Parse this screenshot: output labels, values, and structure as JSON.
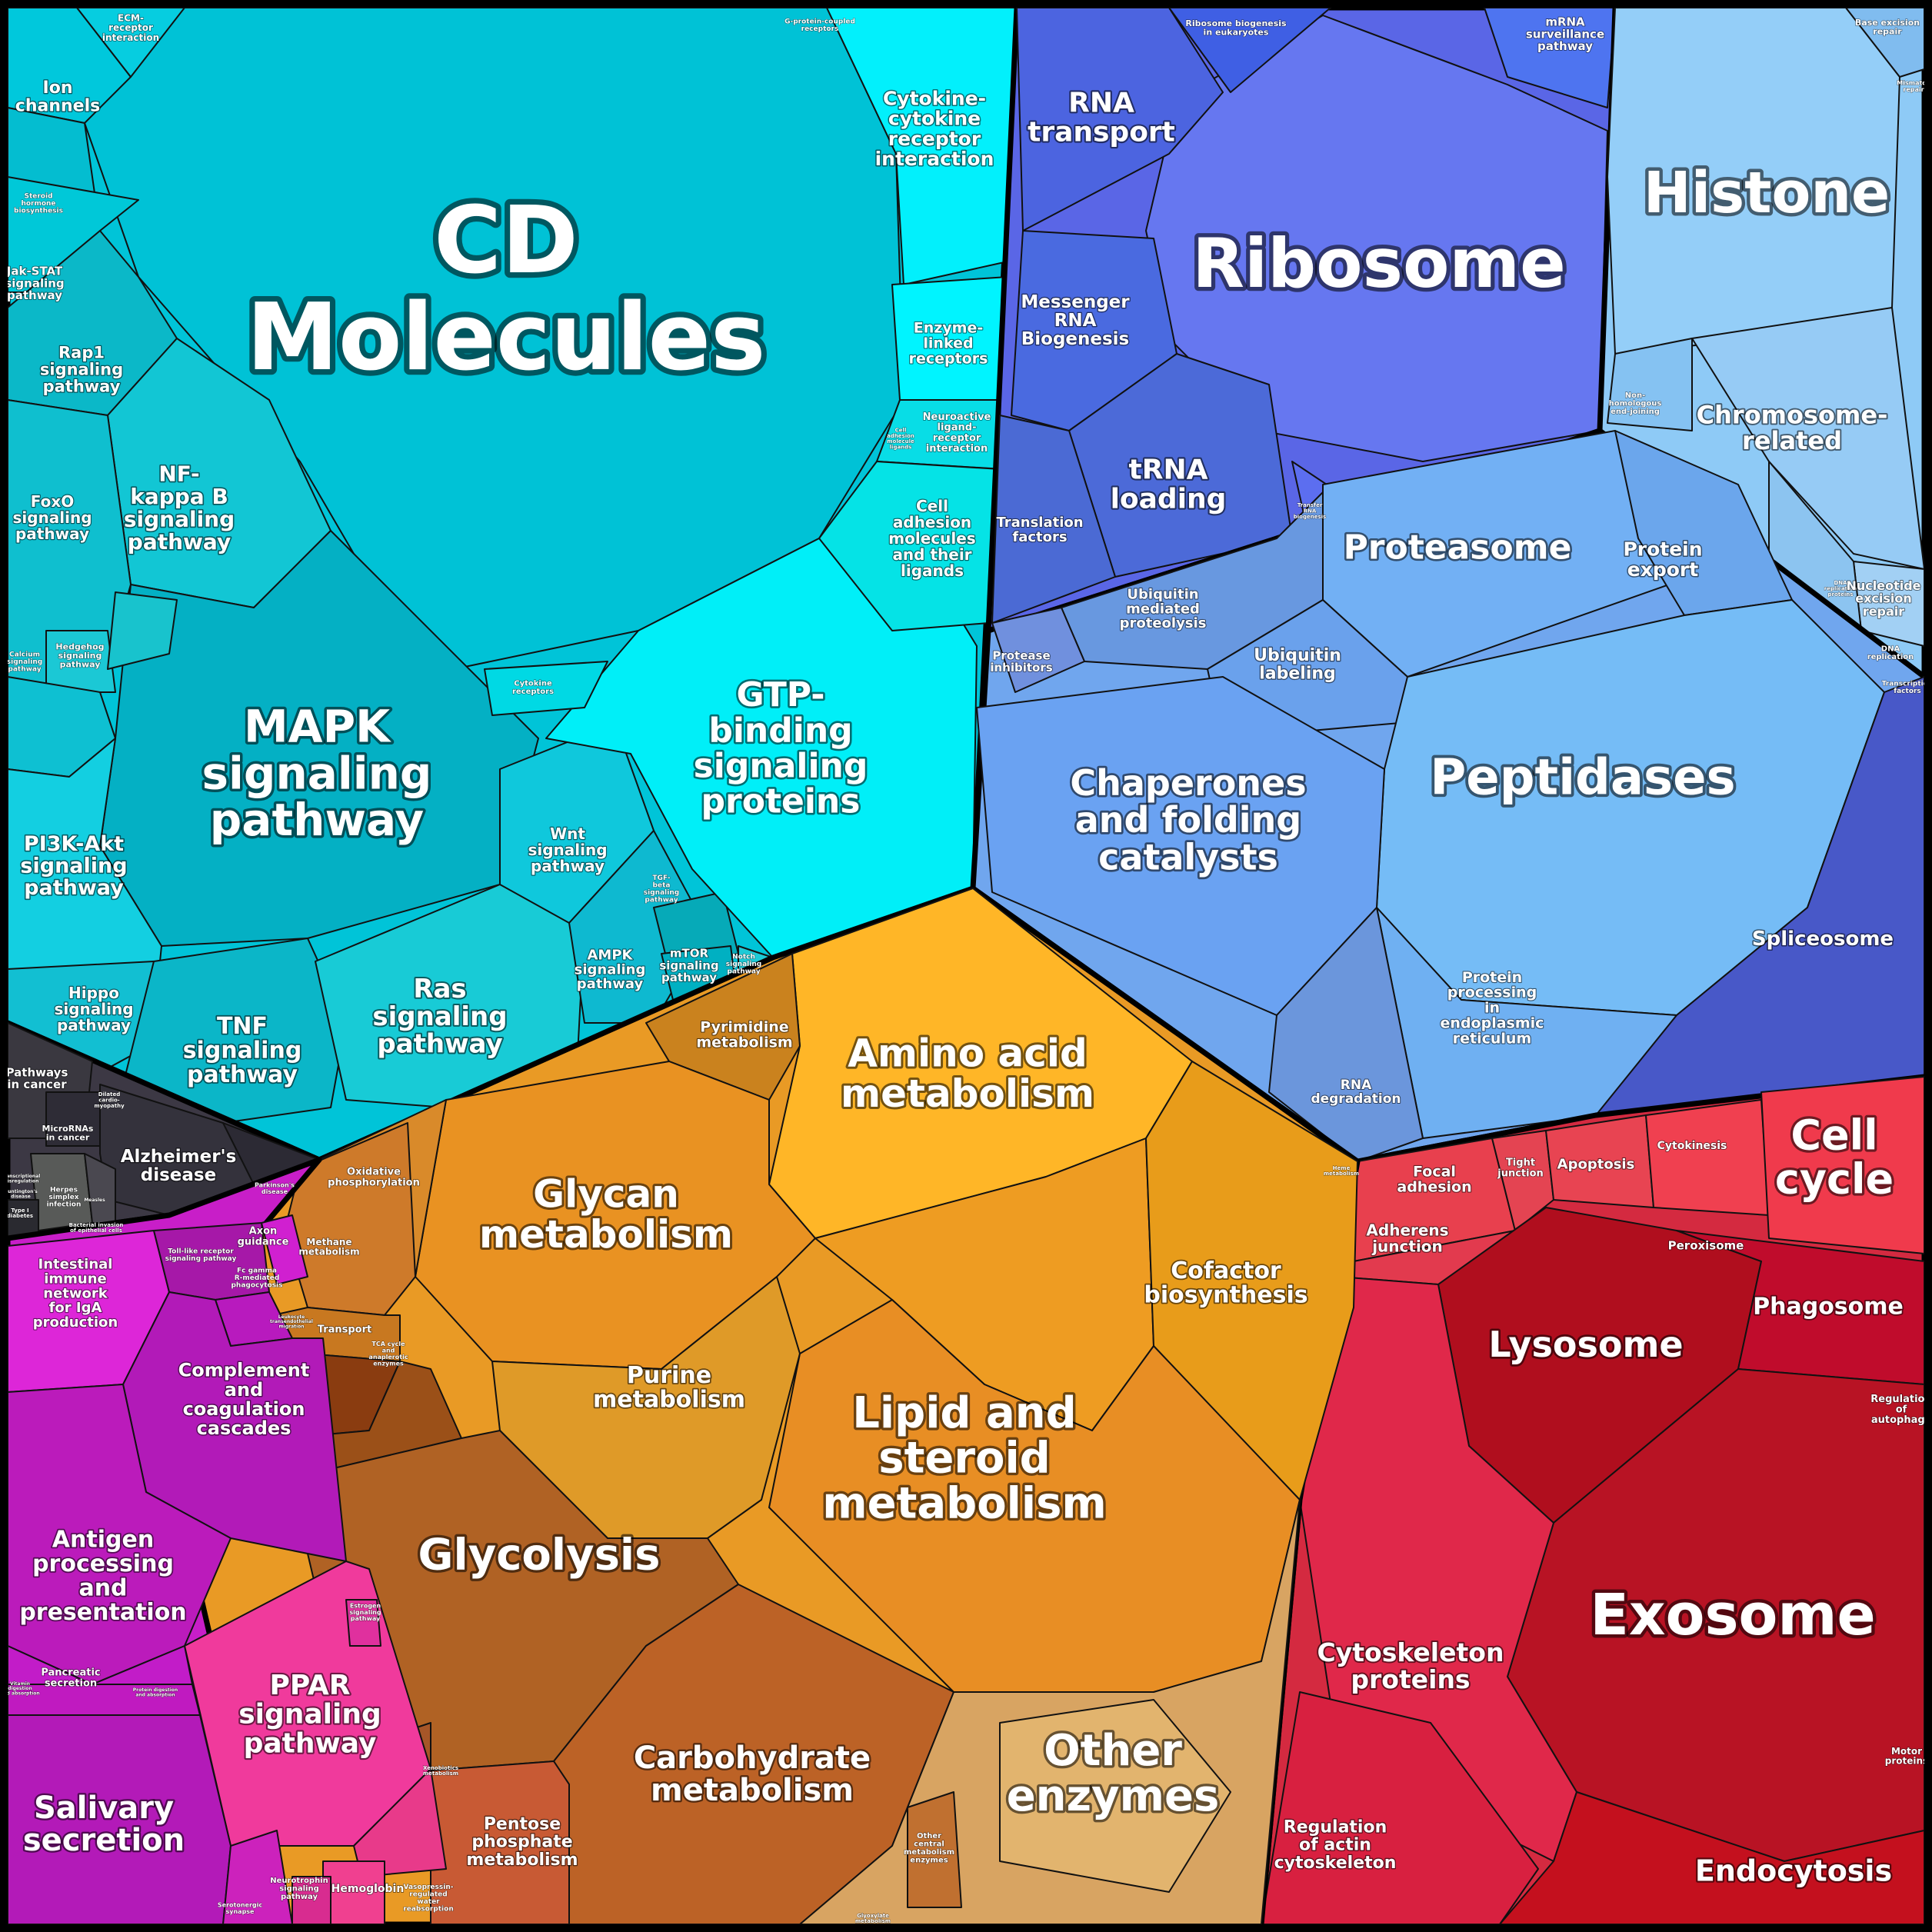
{
  "groups": [
    {
      "id": "signaling",
      "color": "#00c4d9",
      "labels": [
        {
          "id": "cd-molecules",
          "text": [
            "CD",
            "Molecules"
          ],
          "size": 120
        },
        {
          "id": "ion-channels",
          "text": [
            "Ion",
            "channels"
          ],
          "size": 22
        },
        {
          "id": "ecm-receptor",
          "text": [
            "ECM-",
            "receptor",
            "interaction"
          ],
          "size": 12
        },
        {
          "id": "steroid-hormone",
          "text": [
            "Steroid",
            "hormone",
            "biosynthesis"
          ],
          "size": 9
        },
        {
          "id": "jak-stat",
          "text": [
            "Jak-STAT",
            "signaling",
            "pathway"
          ],
          "size": 15
        },
        {
          "id": "rap1",
          "text": [
            "Rap1",
            "signaling",
            "pathway"
          ],
          "size": 21
        },
        {
          "id": "nf-kappa-b",
          "text": [
            "NF-",
            "kappa B",
            "signaling",
            "pathway"
          ],
          "size": 28
        },
        {
          "id": "foxo",
          "text": [
            "FoxO",
            "signaling",
            "pathway"
          ],
          "size": 20
        },
        {
          "id": "hedgehog",
          "text": [
            "Hedgehog",
            "signaling",
            "pathway"
          ],
          "size": 11
        },
        {
          "id": "calcium",
          "text": [
            "Calcium",
            "signaling",
            "pathway"
          ],
          "size": 9
        },
        {
          "id": "mapk",
          "text": [
            "MAPK",
            "signaling",
            "pathway"
          ],
          "size": 58
        },
        {
          "id": "pi3k-akt",
          "text": [
            "PI3K-Akt",
            "signaling",
            "pathway"
          ],
          "size": 27
        },
        {
          "id": "hippo",
          "text": [
            "Hippo",
            "signaling",
            "pathway"
          ],
          "size": 20
        },
        {
          "id": "tnf",
          "text": [
            "TNF",
            "signaling",
            "pathway"
          ],
          "size": 30
        },
        {
          "id": "ras",
          "text": [
            "Ras",
            "signaling",
            "pathway"
          ],
          "size": 34
        },
        {
          "id": "wnt",
          "text": [
            "Wnt",
            "signaling",
            "pathway"
          ],
          "size": 20
        },
        {
          "id": "tgf-beta",
          "text": [
            "TGF-",
            "beta",
            "signaling",
            "pathway"
          ],
          "size": 9
        },
        {
          "id": "ampk",
          "text": [
            "AMPK",
            "signaling",
            "pathway"
          ],
          "size": 18
        },
        {
          "id": "mtor",
          "text": [
            "mTOR",
            "signaling",
            "pathway"
          ],
          "size": 15
        },
        {
          "id": "notch",
          "text": [
            "Notch",
            "signaling",
            "pathway"
          ],
          "size": 9
        },
        {
          "id": "gtp-binding",
          "text": [
            "GTP-",
            "binding",
            "signaling",
            "proteins"
          ],
          "size": 44
        },
        {
          "id": "cytokine-receptors",
          "text": [
            "Cytokine",
            "receptors"
          ],
          "size": 10
        },
        {
          "id": "cell-adhesion",
          "text": [
            "Cell",
            "adhesion",
            "molecules",
            "and their",
            "ligands"
          ],
          "size": 20
        },
        {
          "id": "cell-adhesion-small",
          "text": [
            "Cell",
            "adhesion",
            "molecule",
            "ligands"
          ],
          "size": 7
        },
        {
          "id": "neuroactive",
          "text": [
            "Neuroactive",
            "ligand-",
            "receptor",
            "interaction"
          ],
          "size": 13
        },
        {
          "id": "enzyme-linked",
          "text": [
            "Enzyme-",
            "linked",
            "receptors"
          ],
          "size": 19
        },
        {
          "id": "cytokine-cytokine",
          "text": [
            "Cytokine-",
            "cytokine",
            "receptor",
            "interaction"
          ],
          "size": 25
        },
        {
          "id": "g-protein",
          "text": [
            "G-protein-coupled",
            "receptors"
          ],
          "size": 9
        }
      ]
    },
    {
      "id": "genetic-information",
      "color": "#5060e6",
      "labels": [
        {
          "id": "ribosome",
          "text": [
            "Ribosome"
          ],
          "size": 88
        },
        {
          "id": "rna-transport",
          "text": [
            "RNA",
            "transport"
          ],
          "size": 36
        },
        {
          "id": "ribosome-biogenesis",
          "text": [
            "Ribosome biogenesis",
            "in eukaryotes"
          ],
          "size": 11
        },
        {
          "id": "mrna-surveillance",
          "text": [
            "mRNA",
            "surveillance",
            "pathway"
          ],
          "size": 15
        },
        {
          "id": "messenger-rna",
          "text": [
            "Messenger",
            "RNA",
            "Biogenesis"
          ],
          "size": 23
        },
        {
          "id": "trna-loading",
          "text": [
            "tRNA",
            "loading"
          ],
          "size": 36
        },
        {
          "id": "translation-factors",
          "text": [
            "Translation",
            "factors"
          ],
          "size": 18
        },
        {
          "id": "transfer-rna",
          "text": [
            "Transfer",
            "RNA",
            "biogenesis"
          ],
          "size": 7
        }
      ]
    },
    {
      "id": "chromosome",
      "color": "#8ec8f4",
      "labels": [
        {
          "id": "histone",
          "text": [
            "Histone"
          ],
          "size": 74
        },
        {
          "id": "base-excision",
          "text": [
            "Base excision",
            "repair"
          ],
          "size": 11
        },
        {
          "id": "mismatch",
          "text": [
            "Mismatch",
            "repair"
          ],
          "size": 8
        },
        {
          "id": "non-homologous",
          "text": [
            "Non-",
            "homologous",
            "end-joining"
          ],
          "size": 10
        },
        {
          "id": "chromosome-related",
          "text": [
            "Chromosome-",
            "related"
          ],
          "size": 32
        },
        {
          "id": "dna-replication-proteins",
          "text": [
            "DNA",
            "replication",
            "proteins"
          ],
          "size": 7
        },
        {
          "id": "nucleotide-excision",
          "text": [
            "Nucleotide",
            "excision",
            "repair"
          ],
          "size": 16
        },
        {
          "id": "dna-replication",
          "text": [
            "DNA",
            "replication"
          ],
          "size": 10
        },
        {
          "id": "transcription-factors",
          "text": [
            "Transcription",
            "factors"
          ],
          "size": 9
        }
      ]
    },
    {
      "id": "protein-processing",
      "color": "#6ca2ee",
      "labels": [
        {
          "id": "proteasome",
          "text": [
            "Proteasome"
          ],
          "size": 44
        },
        {
          "id": "protein-export",
          "text": [
            "Protein",
            "export"
          ],
          "size": 25
        },
        {
          "id": "peptidases",
          "text": [
            "Peptidases"
          ],
          "size": 64
        },
        {
          "id": "ubiquitin-mediated",
          "text": [
            "Ubiquitin",
            "mediated",
            "proteolysis"
          ],
          "size": 18
        },
        {
          "id": "ubiquitin-labeling",
          "text": [
            "Ubiquitin",
            "labeling"
          ],
          "size": 22
        },
        {
          "id": "protease-inhibitors",
          "text": [
            "Protease",
            "inhibitors"
          ],
          "size": 15
        },
        {
          "id": "chaperones",
          "text": [
            "Chaperones",
            "and folding",
            "catalysts"
          ],
          "size": 46
        },
        {
          "id": "protein-processing-er",
          "text": [
            "Protein",
            "processing",
            "in",
            "endoplasmic",
            "reticulum"
          ],
          "size": 19
        },
        {
          "id": "rna-degradation",
          "text": [
            "RNA",
            "degradation"
          ],
          "size": 17
        },
        {
          "id": "spliceosome",
          "text": [
            "Spliceosome"
          ],
          "size": 26
        }
      ]
    },
    {
      "id": "cellular-processes",
      "color": "#e02a46",
      "labels": [
        {
          "id": "cell-cycle",
          "text": [
            "Cell",
            "cycle"
          ],
          "size": 54
        },
        {
          "id": "focal-adhesion",
          "text": [
            "Focal",
            "adhesion"
          ],
          "size": 19
        },
        {
          "id": "tight-junction",
          "text": [
            "Tight",
            "junction"
          ],
          "size": 13
        },
        {
          "id": "apoptosis",
          "text": [
            "Apoptosis"
          ],
          "size": 18
        },
        {
          "id": "cytokinesis",
          "text": [
            "Cytokinesis"
          ],
          "size": 14
        },
        {
          "id": "adherens-junction",
          "text": [
            "Adherens",
            "junction"
          ],
          "size": 20
        },
        {
          "id": "peroxisome",
          "text": [
            "Peroxisome"
          ],
          "size": 15
        },
        {
          "id": "lysosome",
          "text": [
            "Lysosome"
          ],
          "size": 46
        },
        {
          "id": "phagosome",
          "text": [
            "Phagosome"
          ],
          "size": 30
        },
        {
          "id": "regulation-autophagy",
          "text": [
            "Regulation",
            "of",
            "autophagy"
          ],
          "size": 13
        },
        {
          "id": "exosome",
          "text": [
            "Exosome"
          ],
          "size": 74
        },
        {
          "id": "cytoskeleton",
          "text": [
            "Cytoskeleton",
            "proteins"
          ],
          "size": 33
        },
        {
          "id": "motor-proteins",
          "text": [
            "Motor",
            "proteins"
          ],
          "size": 12
        },
        {
          "id": "regulation-actin",
          "text": [
            "Regulation",
            "of actin",
            "cytoskeleton"
          ],
          "size": 22
        },
        {
          "id": "endocytosis",
          "text": [
            "Endocytosis"
          ],
          "size": 38
        }
      ]
    },
    {
      "id": "metabolism",
      "color": "#f0a020",
      "labels": [
        {
          "id": "amino-acid",
          "text": [
            "Amino acid",
            "metabolism"
          ],
          "size": 50
        },
        {
          "id": "pyrimidine",
          "text": [
            "Pyrimidine",
            "metabolism"
          ],
          "size": 19
        },
        {
          "id": "glycan",
          "text": [
            "Glycan",
            "metabolism"
          ],
          "size": 50
        },
        {
          "id": "oxidative-phosphorylation",
          "text": [
            "Oxidative",
            "phosphorylation"
          ],
          "size": 13
        },
        {
          "id": "cofactor",
          "text": [
            "Cofactor",
            "biosynthesis"
          ],
          "size": 30
        },
        {
          "id": "purine",
          "text": [
            "Purine",
            "metabolism"
          ],
          "size": 30
        },
        {
          "id": "lipid-steroid",
          "text": [
            "Lipid and",
            "steroid",
            "metabolism"
          ],
          "size": 56
        },
        {
          "id": "methane",
          "text": [
            "Methane",
            "metabolism"
          ],
          "size": 12
        },
        {
          "id": "transport",
          "text": [
            "Transport"
          ],
          "size": 13
        },
        {
          "id": "tca-cycle",
          "text": [
            "TCA cycle",
            "and",
            "anaplerotic",
            "enzymes"
          ],
          "size": 8
        },
        {
          "id": "glycolysis",
          "text": [
            "Glycolysis"
          ],
          "size": 56
        },
        {
          "id": "carbohydrate",
          "text": [
            "Carbohydrate",
            "metabolism"
          ],
          "size": 40
        },
        {
          "id": "pentose-phosphate",
          "text": [
            "Pentose",
            "phosphate",
            "metabolism"
          ],
          "size": 22
        },
        {
          "id": "other-central",
          "text": [
            "Other",
            "central",
            "metabolism",
            "enzymes"
          ],
          "size": 10
        },
        {
          "id": "other-enzymes",
          "text": [
            "Other",
            "enzymes"
          ],
          "size": 56
        },
        {
          "id": "heme",
          "text": [
            "Heme",
            "metabolism"
          ],
          "size": 7
        },
        {
          "id": "xenobiotics",
          "text": [
            "Xenobiotics",
            "metabolism"
          ],
          "size": 7
        },
        {
          "id": "glyoxylate",
          "text": [
            "Glyoxylate",
            "metabolism"
          ],
          "size": 7
        }
      ]
    },
    {
      "id": "human-diseases",
      "color": "#3a3742",
      "labels": [
        {
          "id": "pathways-in-cancer",
          "text": [
            "Pathways",
            "in cancer"
          ],
          "size": 15
        },
        {
          "id": "microrna",
          "text": [
            "MicroRNAs",
            "in cancer"
          ],
          "size": 11
        },
        {
          "id": "cardiomyopathy",
          "text": [
            "Dilated",
            "cardio-",
            "myopathy"
          ],
          "size": 7
        },
        {
          "id": "alzheimers",
          "text": [
            "Alzheimer's",
            "disease"
          ],
          "size": 23
        },
        {
          "id": "parkinsons",
          "text": [
            "Parkinson's",
            "disease"
          ],
          "size": 8
        },
        {
          "id": "herpes",
          "text": [
            "Herpes",
            "simplex",
            "infection"
          ],
          "size": 9
        },
        {
          "id": "type1-diabetes",
          "text": [
            "Type I",
            "diabetes"
          ],
          "size": 7
        },
        {
          "id": "bacterial-invasion",
          "text": [
            "Bacterial invasion",
            "of epithelial cells"
          ],
          "size": 7
        },
        {
          "id": "transcriptional-misregulation",
          "text": [
            "Transcriptional",
            "misregulation"
          ],
          "size": 6
        },
        {
          "id": "huntingtons",
          "text": [
            "Huntington's",
            "disease"
          ],
          "size": 6
        },
        {
          "id": "measles",
          "text": [
            "Measles"
          ],
          "size": 6
        }
      ]
    },
    {
      "id": "organismal-systems",
      "color": "#c218c2",
      "labels": [
        {
          "id": "intestinal-immune",
          "text": [
            "Intestinal",
            "immune",
            "network",
            "for IgA",
            "production"
          ],
          "size": 18
        },
        {
          "id": "toll-like",
          "text": [
            "Toll-like receptor",
            "signaling pathway"
          ],
          "size": 9
        },
        {
          "id": "fc-gamma",
          "text": [
            "Fc gamma",
            "R-mediated",
            "phagocytosis"
          ],
          "size": 9
        },
        {
          "id": "axon-guidance",
          "text": [
            "Axon",
            "guidance"
          ],
          "size": 13
        },
        {
          "id": "leukocyte-migration",
          "text": [
            "Leukocyte",
            "transendothelial",
            "migration"
          ],
          "size": 6
        },
        {
          "id": "complement",
          "text": [
            "Complement",
            "and",
            "coagulation",
            "cascades"
          ],
          "size": 24
        },
        {
          "id": "antigen-processing",
          "text": [
            "Antigen",
            "processing",
            "and",
            "presentation"
          ],
          "size": 30
        },
        {
          "id": "pancreatic-secretion",
          "text": [
            "Pancreatic",
            "secretion"
          ],
          "size": 13
        },
        {
          "id": "vitamin-digestion",
          "text": [
            "Vitamin",
            "digestion",
            "and absorption"
          ],
          "size": 6
        },
        {
          "id": "protein-digestion",
          "text": [
            "Protein digestion",
            "and absorption"
          ],
          "size": 6
        },
        {
          "id": "ppar",
          "text": [
            "PPAR",
            "signaling",
            "pathway"
          ],
          "size": 36
        },
        {
          "id": "estrogen",
          "text": [
            "Estrogen",
            "signaling",
            "pathway"
          ],
          "size": 8
        },
        {
          "id": "salivary-secretion",
          "text": [
            "Salivary",
            "secretion"
          ],
          "size": 40
        },
        {
          "id": "serotonergic",
          "text": [
            "Serotonergic",
            "synapse"
          ],
          "size": 8
        },
        {
          "id": "neurotrophin",
          "text": [
            "Neurotrophin",
            "signaling",
            "pathway"
          ],
          "size": 10
        },
        {
          "id": "hemoglobin",
          "text": [
            "Hemoglobin"
          ],
          "size": 14
        },
        {
          "id": "vasopressin",
          "text": [
            "Vasopressin-",
            "regulated",
            "water",
            "reabsorption"
          ],
          "size": 9
        }
      ]
    }
  ]
}
